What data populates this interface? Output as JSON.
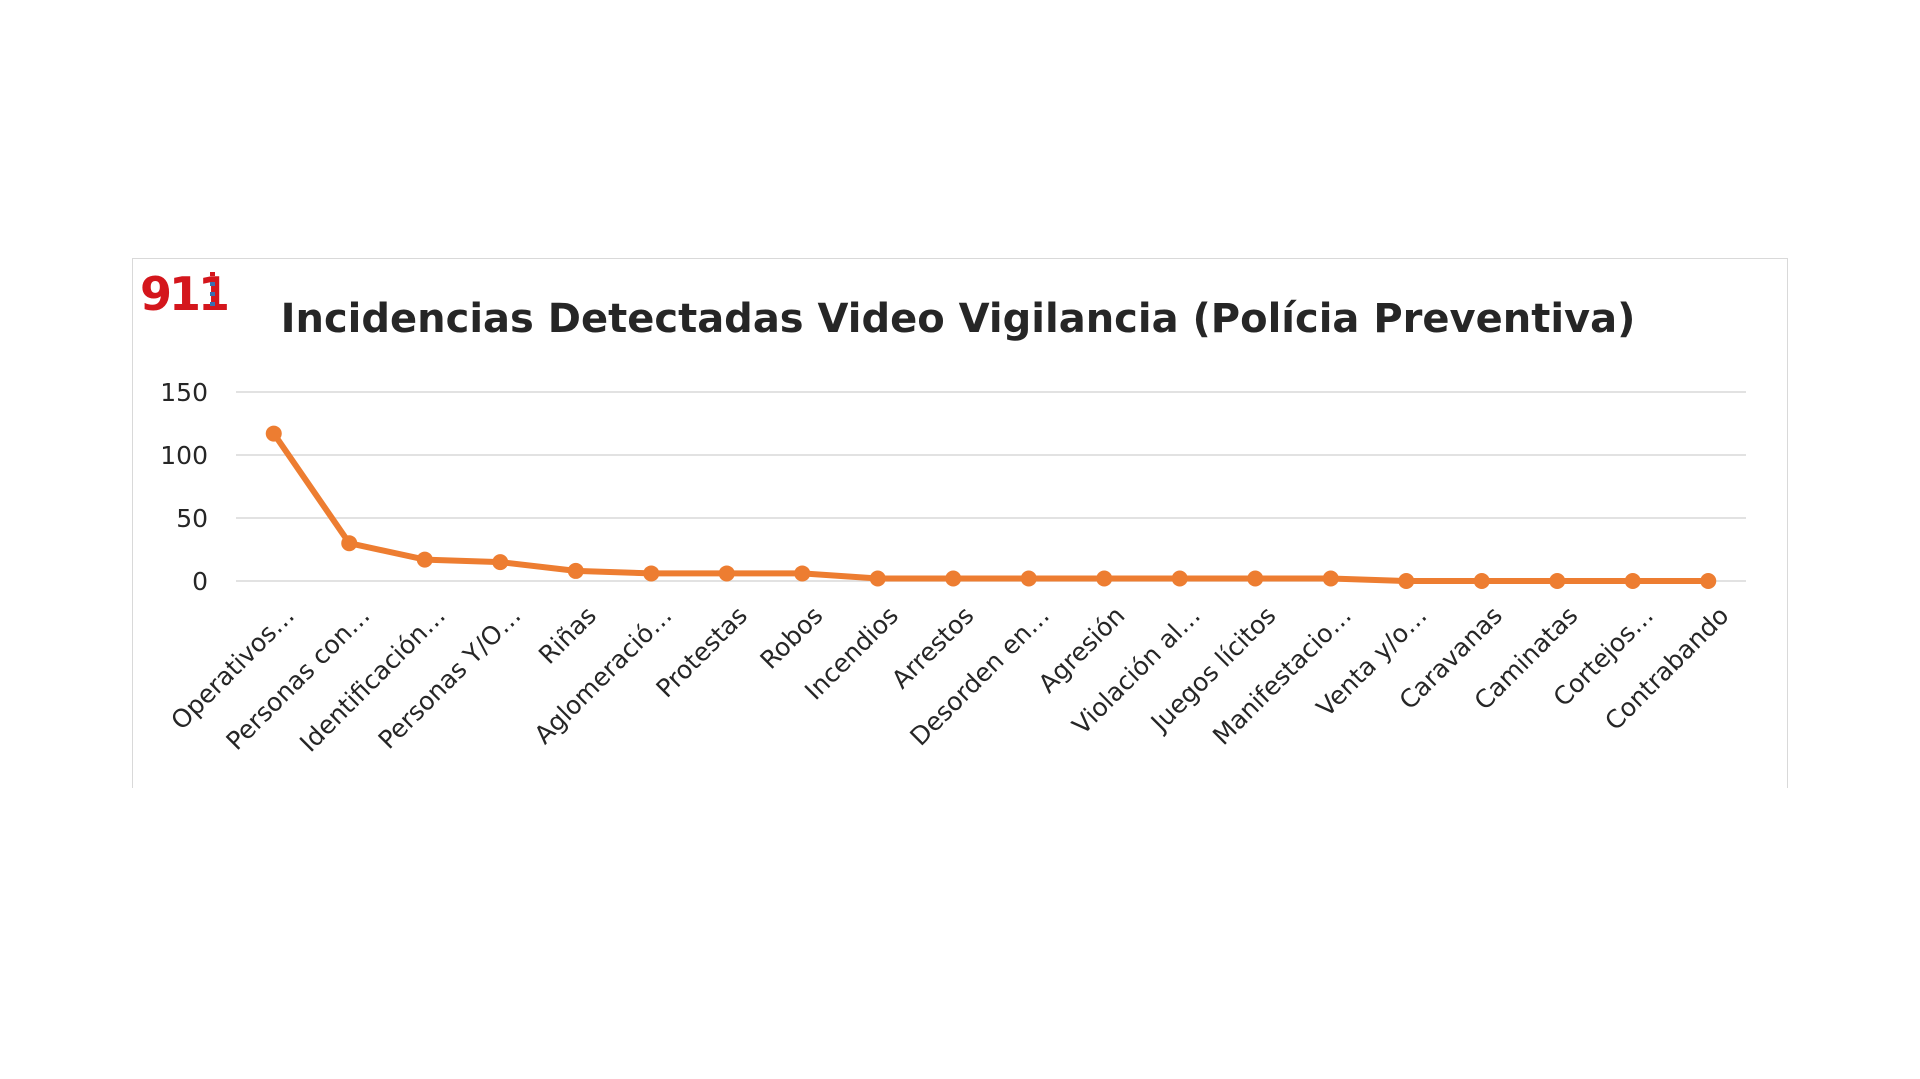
{
  "chart_data": {
    "type": "line",
    "title": "Incidencias Detectadas Video Vigilancia (Polícia Preventiva)",
    "logo_text": "911",
    "xlabel": "",
    "ylabel": "",
    "ylim": [
      0,
      150
    ],
    "yticks": [
      0,
      50,
      100,
      150
    ],
    "grid": true,
    "legend": "none",
    "line_color": "#ED7D31",
    "categories": [
      "Operativos…",
      "Personas con…",
      "Identificación…",
      "Personas Y/O…",
      "Riñas",
      "Aglomeració…",
      "Protestas",
      "Robos",
      "Incendios",
      "Arrestos",
      "Desorden en…",
      "Agresión",
      "Violación al…",
      "Juegos lícitos",
      "Manifestacio…",
      "Venta y/o…",
      "Caravanas",
      "Caminatas",
      "Cortejos…",
      "Contrabando"
    ],
    "values": [
      117,
      30,
      17,
      15,
      8,
      6,
      6,
      6,
      2,
      2,
      2,
      2,
      2,
      2,
      2,
      0,
      0,
      0,
      0,
      0
    ]
  }
}
